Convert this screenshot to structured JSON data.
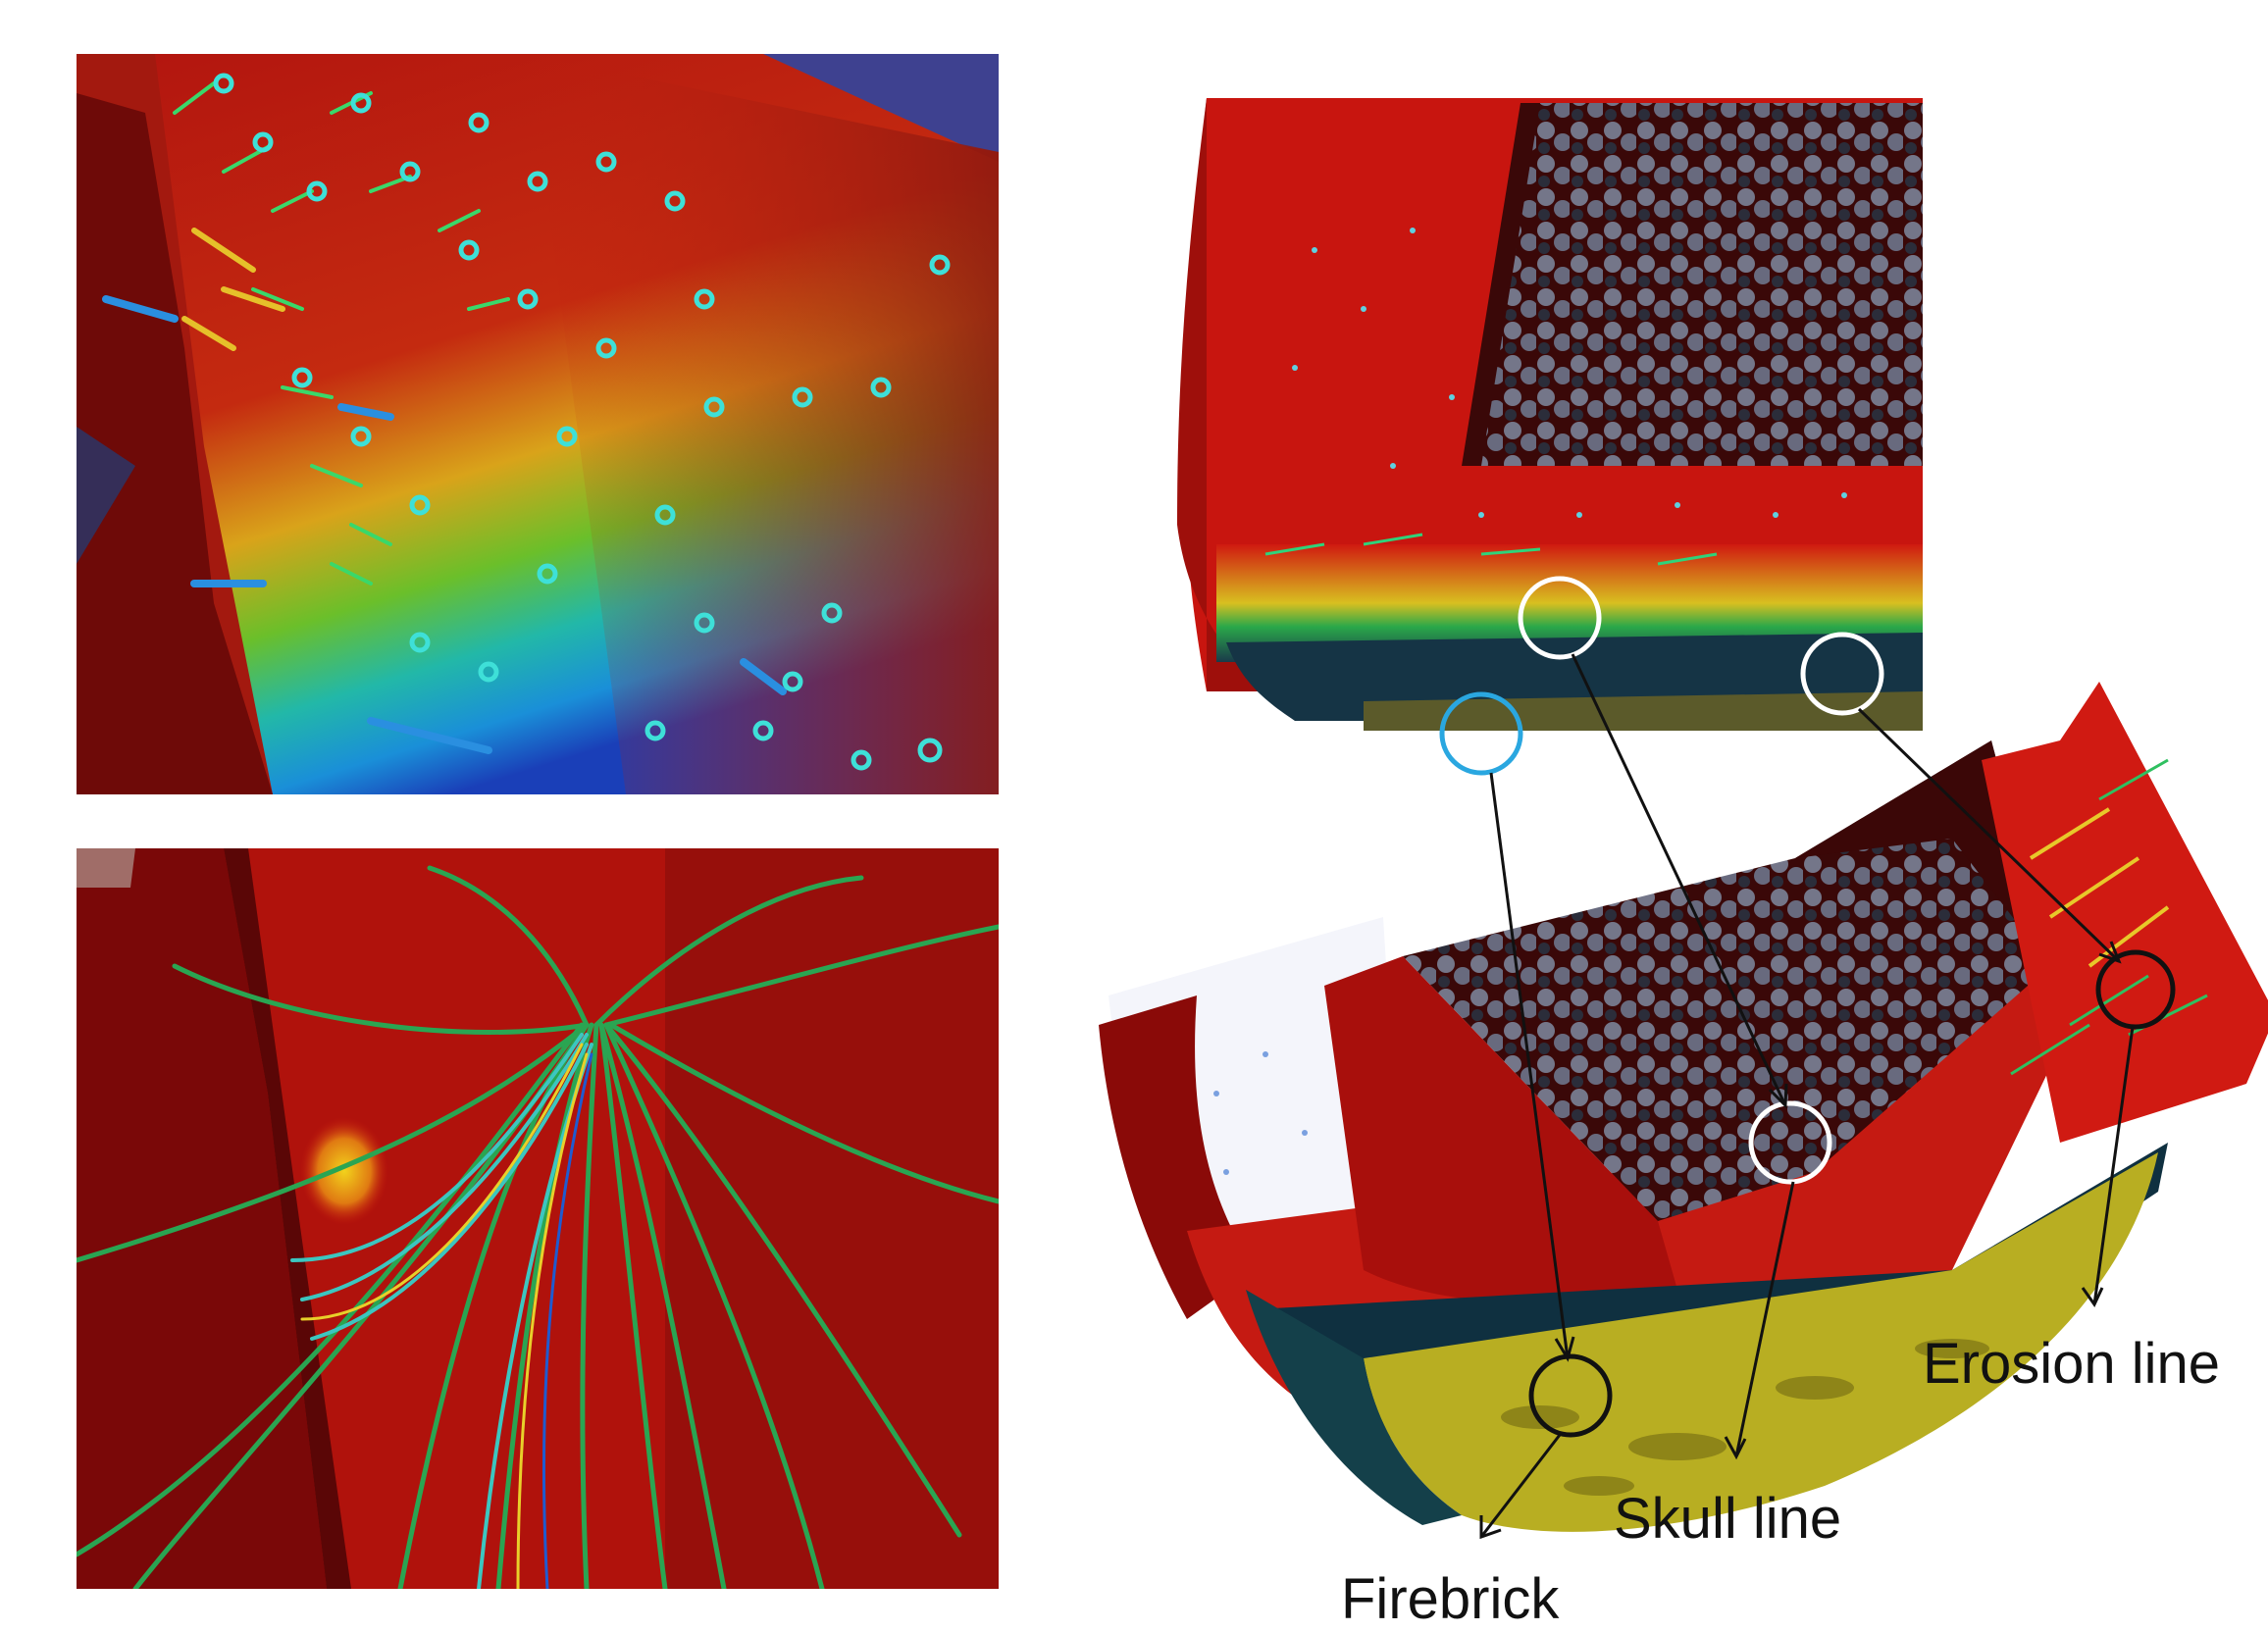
{
  "labels": {
    "erosion_line": "Erosion line",
    "skull_line": "Skull line",
    "firebrick": "Firebrick"
  },
  "colors": {
    "hot_red": "#c8120e",
    "dark_red": "#6e0807",
    "yellow": "#e8d21a",
    "green": "#2fb34a",
    "cyan": "#27c6e0",
    "blue": "#1a4fd0",
    "skull_yellow": "#b7ad1f",
    "pebble_gray": "#6f7184",
    "marker_white": "#ffffff",
    "marker_blue": "#2aa7e0",
    "marker_black": "#111111"
  }
}
